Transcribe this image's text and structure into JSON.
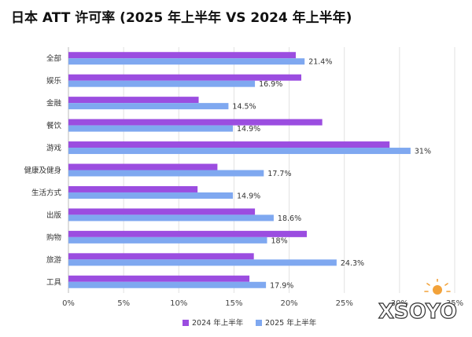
{
  "title": "日本 ATT 许可率 (2025 年上半年 VS 2024 年上半年)",
  "chart_data": {
    "type": "bar",
    "orientation": "horizontal",
    "categories": [
      "全部",
      "娱乐",
      "金融",
      "餐饮",
      "游戏",
      "健康及健身",
      "生活方式",
      "出版",
      "购物",
      "旅游",
      "工具"
    ],
    "series": [
      {
        "name": "2024 年上半年",
        "color": "#9b4de0",
        "values": [
          20.6,
          21.1,
          11.8,
          23.0,
          29.1,
          13.5,
          11.7,
          16.9,
          21.6,
          16.8,
          16.4
        ]
      },
      {
        "name": "2025 年上半年",
        "color": "#7fa8f0",
        "values": [
          21.4,
          16.9,
          14.5,
          14.9,
          31,
          17.7,
          14.9,
          18.6,
          18,
          24.3,
          17.9
        ]
      }
    ],
    "data_labels": [
      "21.4%",
      "16.9%",
      "14.5%",
      "14.9%",
      "31%",
      "17.7%",
      "14.9%",
      "18.6%",
      "18%",
      "24.3%",
      "17.9%"
    ],
    "x_ticks": [
      "0%",
      "5%",
      "10%",
      "15%",
      "20%",
      "25%",
      "30%",
      "35%"
    ],
    "xlim": [
      0,
      35
    ],
    "grid": true,
    "legend_position": "bottom-center"
  },
  "watermark": {
    "text": "XSOYO",
    "icon": "sun-icon"
  }
}
